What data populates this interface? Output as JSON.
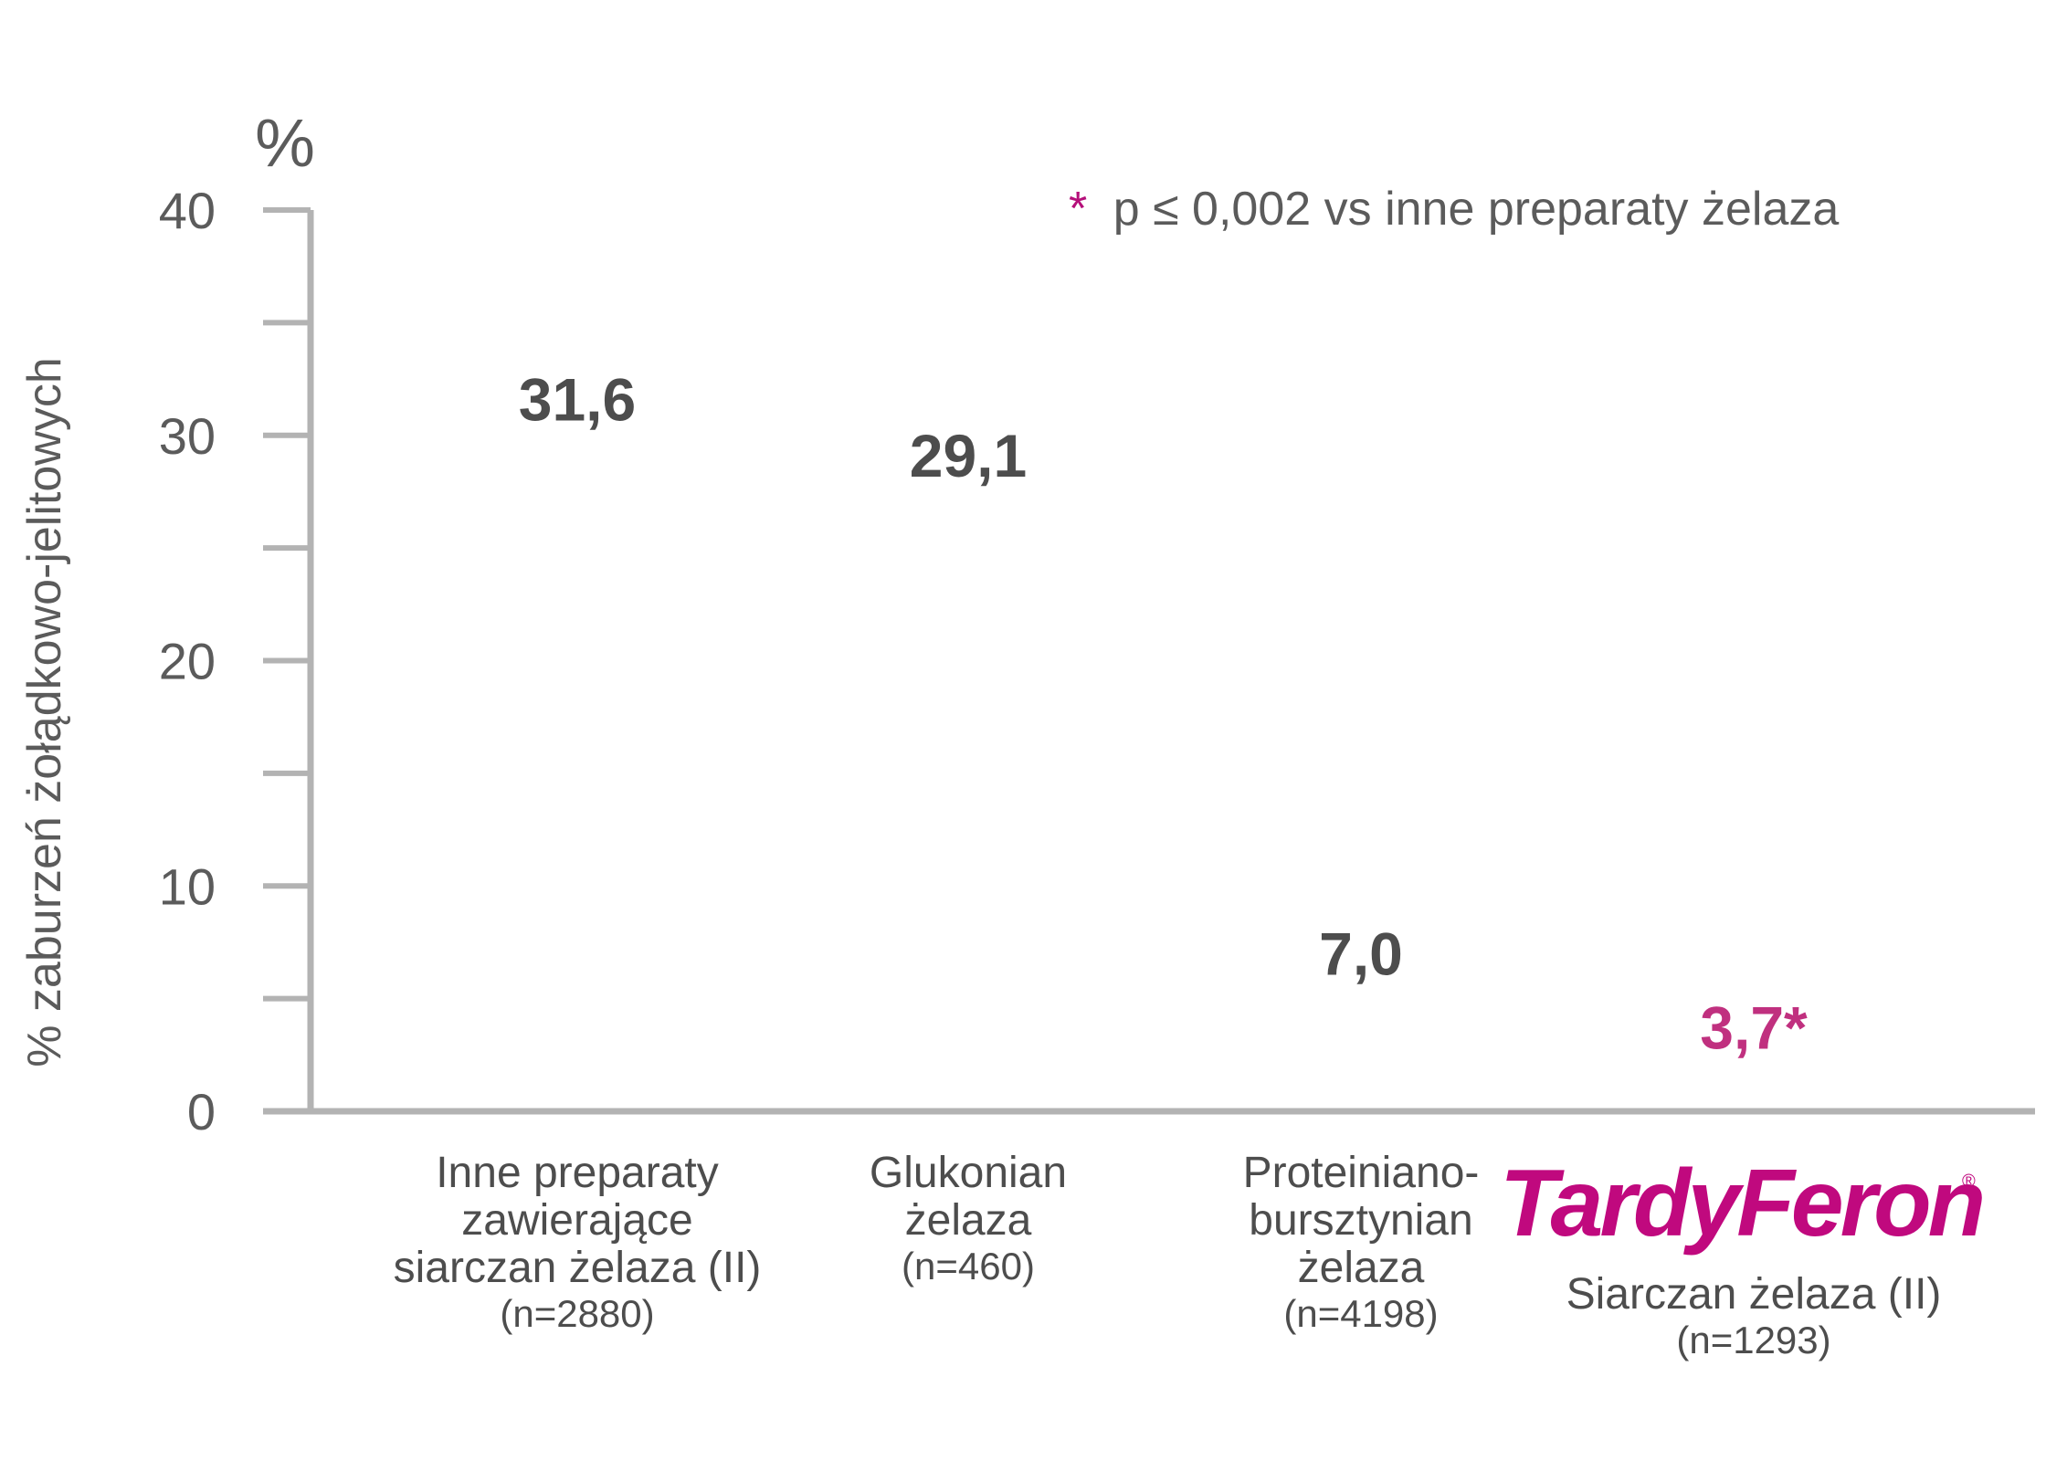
{
  "chart_data": {
    "type": "bar",
    "unit": "%",
    "ylabel": "% zaburzeń żołądkowo-jelitowych",
    "ylim": [
      0,
      40
    ],
    "yticks": [
      0,
      10,
      20,
      30,
      40
    ],
    "note": {
      "star": "*",
      "text": "p ≤ 0,002 vs inne preparaty żelaza"
    },
    "categories": [
      {
        "lines": [
          "Inne preparaty",
          "zawierające",
          "siarczan żelaza (II)"
        ],
        "n": "(n=2880)",
        "value": 31.6,
        "value_label": "31,6"
      },
      {
        "lines": [
          "Glukonian",
          "żelaza"
        ],
        "n": "(n=460)",
        "value": 29.1,
        "value_label": "29,1"
      },
      {
        "lines": [
          "Proteiniano-",
          "bursztynian",
          "żelaza"
        ],
        "n": "(n=4198)",
        "value": 7.0,
        "value_label": "7,0"
      },
      {
        "logo": "TardyFeron",
        "logo_mark": "®",
        "lines": [
          "Siarczan żelaza (II)"
        ],
        "n": "(n=1293)",
        "value": 3.7,
        "value_label": "3,7*",
        "highlight": true
      }
    ],
    "colors": {
      "axis": "#b3b3b3",
      "text": "#5b5b5b",
      "value": "#4d4d4d",
      "highlight": "#c0307f",
      "logo": "#c0097e"
    },
    "grid": false,
    "legend": "none"
  }
}
